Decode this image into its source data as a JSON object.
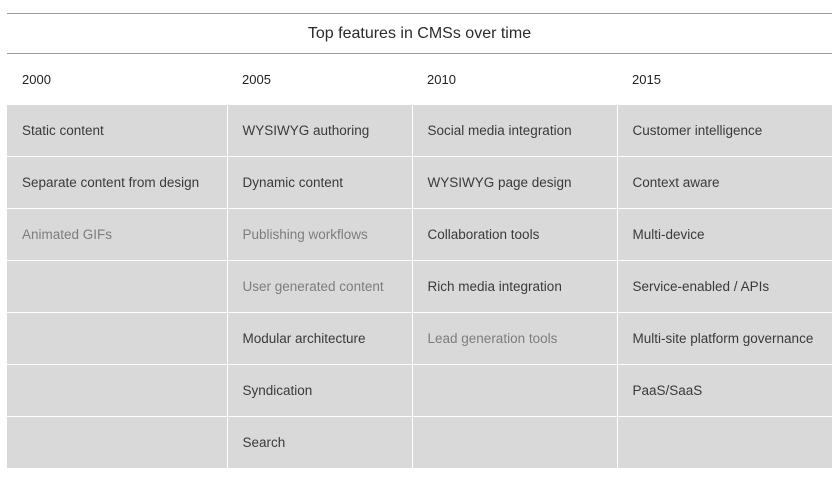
{
  "caption": "Top features in CMSs over time",
  "columns": [
    {
      "year": "2000",
      "features": [
        "Static content",
        "Separate content from design",
        "Animated GIFs",
        "",
        "",
        "",
        ""
      ],
      "dim": [
        false,
        false,
        true,
        false,
        false,
        false,
        false
      ]
    },
    {
      "year": "2005",
      "features": [
        "WYSIWYG authoring",
        "Dynamic content",
        "Publishing workflows",
        "User generated content",
        "Modular architecture",
        "Syndication",
        "Search"
      ],
      "dim": [
        false,
        false,
        true,
        true,
        false,
        false,
        false
      ]
    },
    {
      "year": "2010",
      "features": [
        "Social media integration",
        "WYSIWYG page design",
        "Collaboration tools",
        "Rich media integration",
        "Lead generation tools",
        "",
        ""
      ],
      "dim": [
        false,
        false,
        false,
        false,
        true,
        false,
        false
      ]
    },
    {
      "year": "2015",
      "features": [
        "Customer intelligence",
        "Context aware",
        "Multi-device",
        "Service-enabled / APIs",
        "Multi-site platform governance",
        "PaaS/SaaS",
        ""
      ],
      "dim": [
        false,
        false,
        false,
        false,
        false,
        false,
        false
      ]
    }
  ],
  "colors": {
    "cell_background": "#d9d9d9",
    "text": "#3a3a3a",
    "dim_text": "#7d7d7d",
    "rule": "#9a9a9a"
  }
}
